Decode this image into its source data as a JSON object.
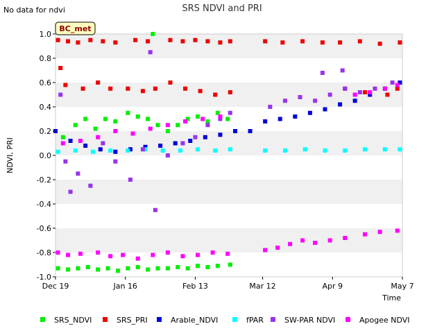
{
  "chart_data": {
    "type": "scatter",
    "title": "SRS NDVI and PRI",
    "note": "No data for ndvi",
    "badge": "BC_met",
    "xlabel": "Time",
    "ylabel": "NDVI, PRI",
    "ylim": [
      -1.0,
      1.0
    ],
    "yticks": [
      1.0,
      0.8,
      0.6,
      0.4,
      0.2,
      0.0,
      -0.2,
      -0.4,
      -0.6,
      -0.8,
      -1.0
    ],
    "ytick_labels": [
      "1.0",
      "0.8",
      "0.6",
      "0.4",
      "0.2",
      "0.0",
      "-0.2",
      "-0.4",
      "-0.6",
      "-0.8",
      "-1.0"
    ],
    "xlim": [
      "2017-12-19",
      "2018-05-07"
    ],
    "xticks": [
      "2017-12-19",
      "2018-01-16",
      "2018-02-13",
      "2018-03-12",
      "2018-04-09",
      "2018-05-07"
    ],
    "xtick_labels": [
      "Dec 19",
      "Jan 16",
      "Feb 13",
      "Mar 12",
      "Apr 9",
      "May 7"
    ],
    "grid": "horizontal bands",
    "legend_position": "bottom",
    "series": [
      {
        "name": "SRS_NDVI",
        "color": "#00ee00",
        "points": [
          [
            "2017-12-20",
            -0.93
          ],
          [
            "2017-12-24",
            -0.94
          ],
          [
            "2017-12-28",
            -0.93
          ],
          [
            "2018-01-01",
            -0.92
          ],
          [
            "2018-01-05",
            -0.94
          ],
          [
            "2018-01-09",
            -0.93
          ],
          [
            "2018-01-13",
            -0.95
          ],
          [
            "2018-01-17",
            -0.93
          ],
          [
            "2018-01-21",
            -0.92
          ],
          [
            "2018-01-25",
            -0.94
          ],
          [
            "2018-01-29",
            -0.93
          ],
          [
            "2018-02-02",
            -0.93
          ],
          [
            "2018-02-06",
            -0.92
          ],
          [
            "2018-02-10",
            -0.93
          ],
          [
            "2018-02-14",
            -0.91
          ],
          [
            "2018-02-18",
            -0.92
          ],
          [
            "2018-02-22",
            -0.91
          ],
          [
            "2018-02-27",
            -0.9
          ],
          [
            "2017-12-22",
            0.15
          ],
          [
            "2017-12-27",
            0.25
          ],
          [
            "2017-12-31",
            0.3
          ],
          [
            "2018-01-04",
            0.22
          ],
          [
            "2018-01-08",
            0.3
          ],
          [
            "2018-01-12",
            0.28
          ],
          [
            "2018-01-17",
            0.35
          ],
          [
            "2018-01-21",
            0.32
          ],
          [
            "2018-01-25",
            0.3
          ],
          [
            "2018-01-29",
            0.25
          ],
          [
            "2018-02-02",
            0.2
          ],
          [
            "2018-02-06",
            0.25
          ],
          [
            "2018-02-10",
            0.3
          ],
          [
            "2018-02-14",
            0.32
          ],
          [
            "2018-02-18",
            0.28
          ],
          [
            "2018-02-22",
            0.35
          ],
          [
            "2018-02-26",
            0.3
          ],
          [
            "2018-01-27",
            1.0
          ]
        ]
      },
      {
        "name": "SRS_PRI",
        "color": "#ee0000",
        "points": [
          [
            "2017-12-20",
            0.95
          ],
          [
            "2017-12-24",
            0.94
          ],
          [
            "2017-12-28",
            0.93
          ],
          [
            "2018-01-02",
            0.95
          ],
          [
            "2018-01-07",
            0.94
          ],
          [
            "2018-01-12",
            0.93
          ],
          [
            "2018-01-20",
            0.95
          ],
          [
            "2018-01-25",
            0.94
          ],
          [
            "2018-02-03",
            0.95
          ],
          [
            "2018-02-08",
            0.94
          ],
          [
            "2018-02-13",
            0.95
          ],
          [
            "2018-02-18",
            0.94
          ],
          [
            "2018-02-23",
            0.93
          ],
          [
            "2018-02-27",
            0.94
          ],
          [
            "2018-03-13",
            0.94
          ],
          [
            "2018-03-20",
            0.93
          ],
          [
            "2018-03-28",
            0.94
          ],
          [
            "2018-04-05",
            0.93
          ],
          [
            "2018-04-12",
            0.93
          ],
          [
            "2018-04-20",
            0.94
          ],
          [
            "2018-04-28",
            0.92
          ],
          [
            "2018-05-06",
            0.93
          ],
          [
            "2017-12-21",
            0.72
          ],
          [
            "2017-12-23",
            0.58
          ],
          [
            "2017-12-30",
            0.55
          ],
          [
            "2018-01-05",
            0.6
          ],
          [
            "2018-01-10",
            0.55
          ],
          [
            "2018-01-17",
            0.55
          ],
          [
            "2018-01-23",
            0.53
          ],
          [
            "2018-01-28",
            0.55
          ],
          [
            "2018-02-03",
            0.6
          ],
          [
            "2018-02-09",
            0.55
          ],
          [
            "2018-02-15",
            0.53
          ],
          [
            "2018-02-21",
            0.5
          ],
          [
            "2018-02-27",
            0.52
          ],
          [
            "2018-04-14",
            0.55
          ],
          [
            "2018-04-22",
            0.52
          ],
          [
            "2018-05-01",
            0.5
          ],
          [
            "2018-05-05",
            0.55
          ]
        ]
      },
      {
        "name": "Arable_NDVI",
        "color": "#0000dd",
        "points": [
          [
            "2017-12-19",
            0.2
          ],
          [
            "2017-12-25",
            0.12
          ],
          [
            "2017-12-31",
            0.08
          ],
          [
            "2018-01-06",
            0.05
          ],
          [
            "2018-01-12",
            0.03
          ],
          [
            "2018-01-18",
            0.05
          ],
          [
            "2018-01-24",
            0.07
          ],
          [
            "2018-01-30",
            0.08
          ],
          [
            "2018-02-05",
            0.1
          ],
          [
            "2018-02-11",
            0.12
          ],
          [
            "2018-02-17",
            0.15
          ],
          [
            "2018-02-23",
            0.17
          ],
          [
            "2018-03-01",
            0.2
          ],
          [
            "2018-03-07",
            0.2
          ],
          [
            "2018-03-13",
            0.28
          ],
          [
            "2018-03-19",
            0.3
          ],
          [
            "2018-03-25",
            0.32
          ],
          [
            "2018-03-31",
            0.35
          ],
          [
            "2018-04-06",
            0.38
          ],
          [
            "2018-04-12",
            0.42
          ],
          [
            "2018-04-18",
            0.45
          ],
          [
            "2018-04-24",
            0.5
          ],
          [
            "2018-04-30",
            0.55
          ],
          [
            "2018-05-06",
            0.6
          ]
        ]
      },
      {
        "name": "fPAR",
        "color": "#00ffff",
        "points": [
          [
            "2017-12-20",
            0.03
          ],
          [
            "2017-12-27",
            0.04
          ],
          [
            "2018-01-03",
            0.03
          ],
          [
            "2018-01-10",
            0.04
          ],
          [
            "2018-01-17",
            0.04
          ],
          [
            "2018-01-24",
            0.05
          ],
          [
            "2018-01-31",
            0.04
          ],
          [
            "2018-02-07",
            0.04
          ],
          [
            "2018-02-14",
            0.05
          ],
          [
            "2018-02-21",
            0.04
          ],
          [
            "2018-02-27",
            0.05
          ],
          [
            "2018-03-13",
            0.04
          ],
          [
            "2018-03-21",
            0.04
          ],
          [
            "2018-03-29",
            0.05
          ],
          [
            "2018-04-06",
            0.04
          ],
          [
            "2018-04-14",
            0.04
          ],
          [
            "2018-04-22",
            0.05
          ],
          [
            "2018-04-30",
            0.05
          ],
          [
            "2018-05-06",
            0.05
          ]
        ]
      },
      {
        "name": "SW-PAR NDVI",
        "color": "#9933ee",
        "points": [
          [
            "2017-12-21",
            0.5
          ],
          [
            "2017-12-23",
            -0.05
          ],
          [
            "2017-12-25",
            -0.3
          ],
          [
            "2017-12-28",
            -0.15
          ],
          [
            "2018-01-02",
            -0.25
          ],
          [
            "2018-01-07",
            0.1
          ],
          [
            "2018-01-12",
            -0.05
          ],
          [
            "2018-01-18",
            -0.2
          ],
          [
            "2018-01-23",
            0.05
          ],
          [
            "2018-01-26",
            0.85
          ],
          [
            "2018-01-28",
            -0.45
          ],
          [
            "2018-02-02",
            0.0
          ],
          [
            "2018-02-08",
            0.1
          ],
          [
            "2018-02-13",
            0.15
          ],
          [
            "2018-02-18",
            0.25
          ],
          [
            "2018-02-23",
            0.3
          ],
          [
            "2018-02-27",
            0.35
          ],
          [
            "2018-03-15",
            0.4
          ],
          [
            "2018-03-21",
            0.45
          ],
          [
            "2018-03-27",
            0.48
          ],
          [
            "2018-04-02",
            0.45
          ],
          [
            "2018-04-08",
            0.5
          ],
          [
            "2018-04-14",
            0.55
          ],
          [
            "2018-04-20",
            0.52
          ],
          [
            "2018-04-26",
            0.55
          ],
          [
            "2018-05-03",
            0.6
          ],
          [
            "2018-04-05",
            0.68
          ],
          [
            "2018-04-13",
            0.7
          ]
        ]
      },
      {
        "name": "Apogee NDVI",
        "color": "#ff00ff",
        "points": [
          [
            "2017-12-20",
            -0.8
          ],
          [
            "2017-12-24",
            -0.82
          ],
          [
            "2017-12-29",
            -0.81
          ],
          [
            "2018-01-05",
            -0.8
          ],
          [
            "2018-01-10",
            -0.83
          ],
          [
            "2018-01-15",
            -0.82
          ],
          [
            "2018-01-21",
            -0.85
          ],
          [
            "2018-01-27",
            -0.82
          ],
          [
            "2018-02-02",
            -0.8
          ],
          [
            "2018-02-08",
            -0.83
          ],
          [
            "2018-02-14",
            -0.82
          ],
          [
            "2018-02-20",
            -0.8
          ],
          [
            "2018-02-26",
            -0.81
          ],
          [
            "2018-03-13",
            -0.78
          ],
          [
            "2018-03-18",
            -0.76
          ],
          [
            "2018-03-23",
            -0.73
          ],
          [
            "2018-03-28",
            -0.7
          ],
          [
            "2018-04-02",
            -0.72
          ],
          [
            "2018-04-08",
            -0.7
          ],
          [
            "2018-04-14",
            -0.68
          ],
          [
            "2018-04-22",
            -0.65
          ],
          [
            "2018-04-28",
            -0.63
          ],
          [
            "2018-05-05",
            -0.62
          ],
          [
            "2017-12-22",
            0.1
          ],
          [
            "2017-12-29",
            0.12
          ],
          [
            "2018-01-05",
            0.15
          ],
          [
            "2018-01-12",
            0.2
          ],
          [
            "2018-01-19",
            0.18
          ],
          [
            "2018-01-26",
            0.22
          ],
          [
            "2018-02-02",
            0.25
          ],
          [
            "2018-02-09",
            0.28
          ],
          [
            "2018-02-16",
            0.3
          ],
          [
            "2018-02-23",
            0.32
          ],
          [
            "2018-04-18",
            0.5
          ],
          [
            "2018-04-24",
            0.52
          ],
          [
            "2018-04-30",
            0.55
          ],
          [
            "2018-05-05",
            0.58
          ]
        ]
      }
    ]
  }
}
